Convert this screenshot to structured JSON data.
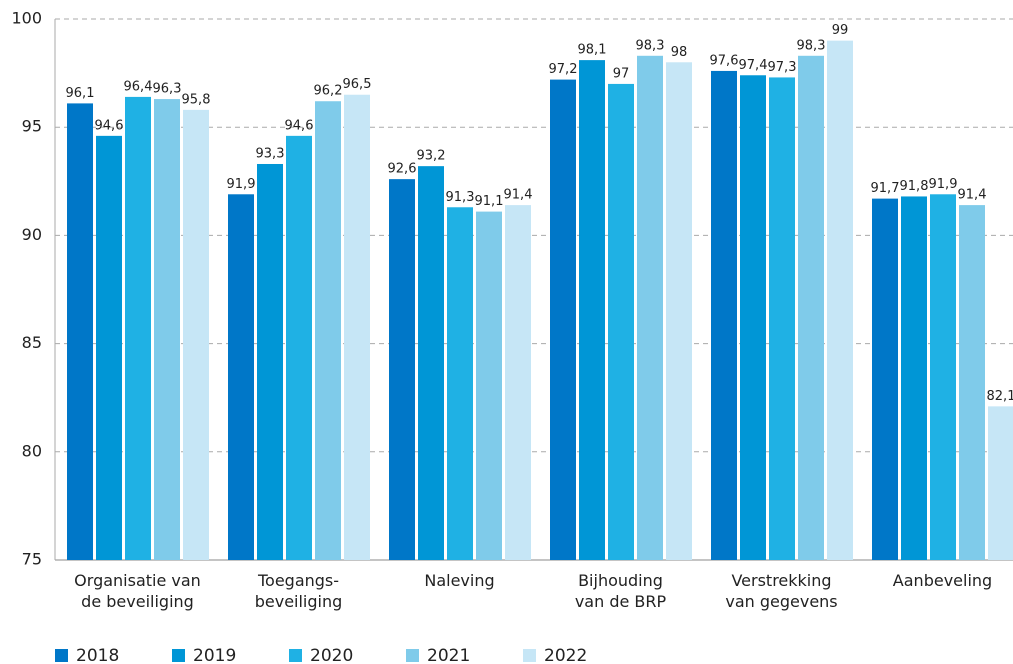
{
  "chart_data": {
    "type": "bar",
    "categories": [
      "Organisatie van\nde beveiliging",
      "Toegangs-\nbeveiliging",
      "Naleving",
      "Bijhouding\nvan de BRP",
      "Verstrekking\nvan gegevens",
      "Aanbeveling"
    ],
    "series": [
      {
        "name": "2018",
        "color": "#0077c8",
        "values": [
          96.1,
          91.9,
          92.6,
          97.2,
          97.6,
          91.7
        ],
        "value_labels": [
          "96,1",
          "91,9",
          "92,6",
          "97,2",
          "97,6",
          "91,7"
        ]
      },
      {
        "name": "2019",
        "color": "#0096d6",
        "values": [
          94.6,
          93.3,
          93.2,
          98.1,
          97.4,
          91.8
        ],
        "value_labels": [
          "94,6",
          "93,3",
          "93,2",
          "98,1",
          "97,4",
          "91,8"
        ]
      },
      {
        "name": "2020",
        "color": "#1fb1e4",
        "values": [
          96.4,
          94.6,
          91.3,
          97,
          97.3,
          91.9
        ],
        "value_labels": [
          "96,4",
          "94,6",
          "91,3",
          "97",
          "97,3",
          "91,9"
        ]
      },
      {
        "name": "2021",
        "color": "#7fcbea",
        "values": [
          96.3,
          96.2,
          91.1,
          98.3,
          98.3,
          91.4
        ],
        "value_labels": [
          "96,3",
          "96,2",
          "91,1",
          "98,3",
          "98,3",
          "91,4"
        ]
      },
      {
        "name": "2022",
        "color": "#c6e6f6",
        "values": [
          95.8,
          96.5,
          91.4,
          98,
          99,
          82.1
        ],
        "value_labels": [
          "95,8",
          "96,5",
          "91,4",
          "98",
          "99",
          "82,1"
        ]
      }
    ],
    "ylim": [
      75,
      100
    ],
    "yticks": [
      75,
      80,
      85,
      90,
      95,
      100
    ],
    "grid": true,
    "legend": "bottom"
  }
}
